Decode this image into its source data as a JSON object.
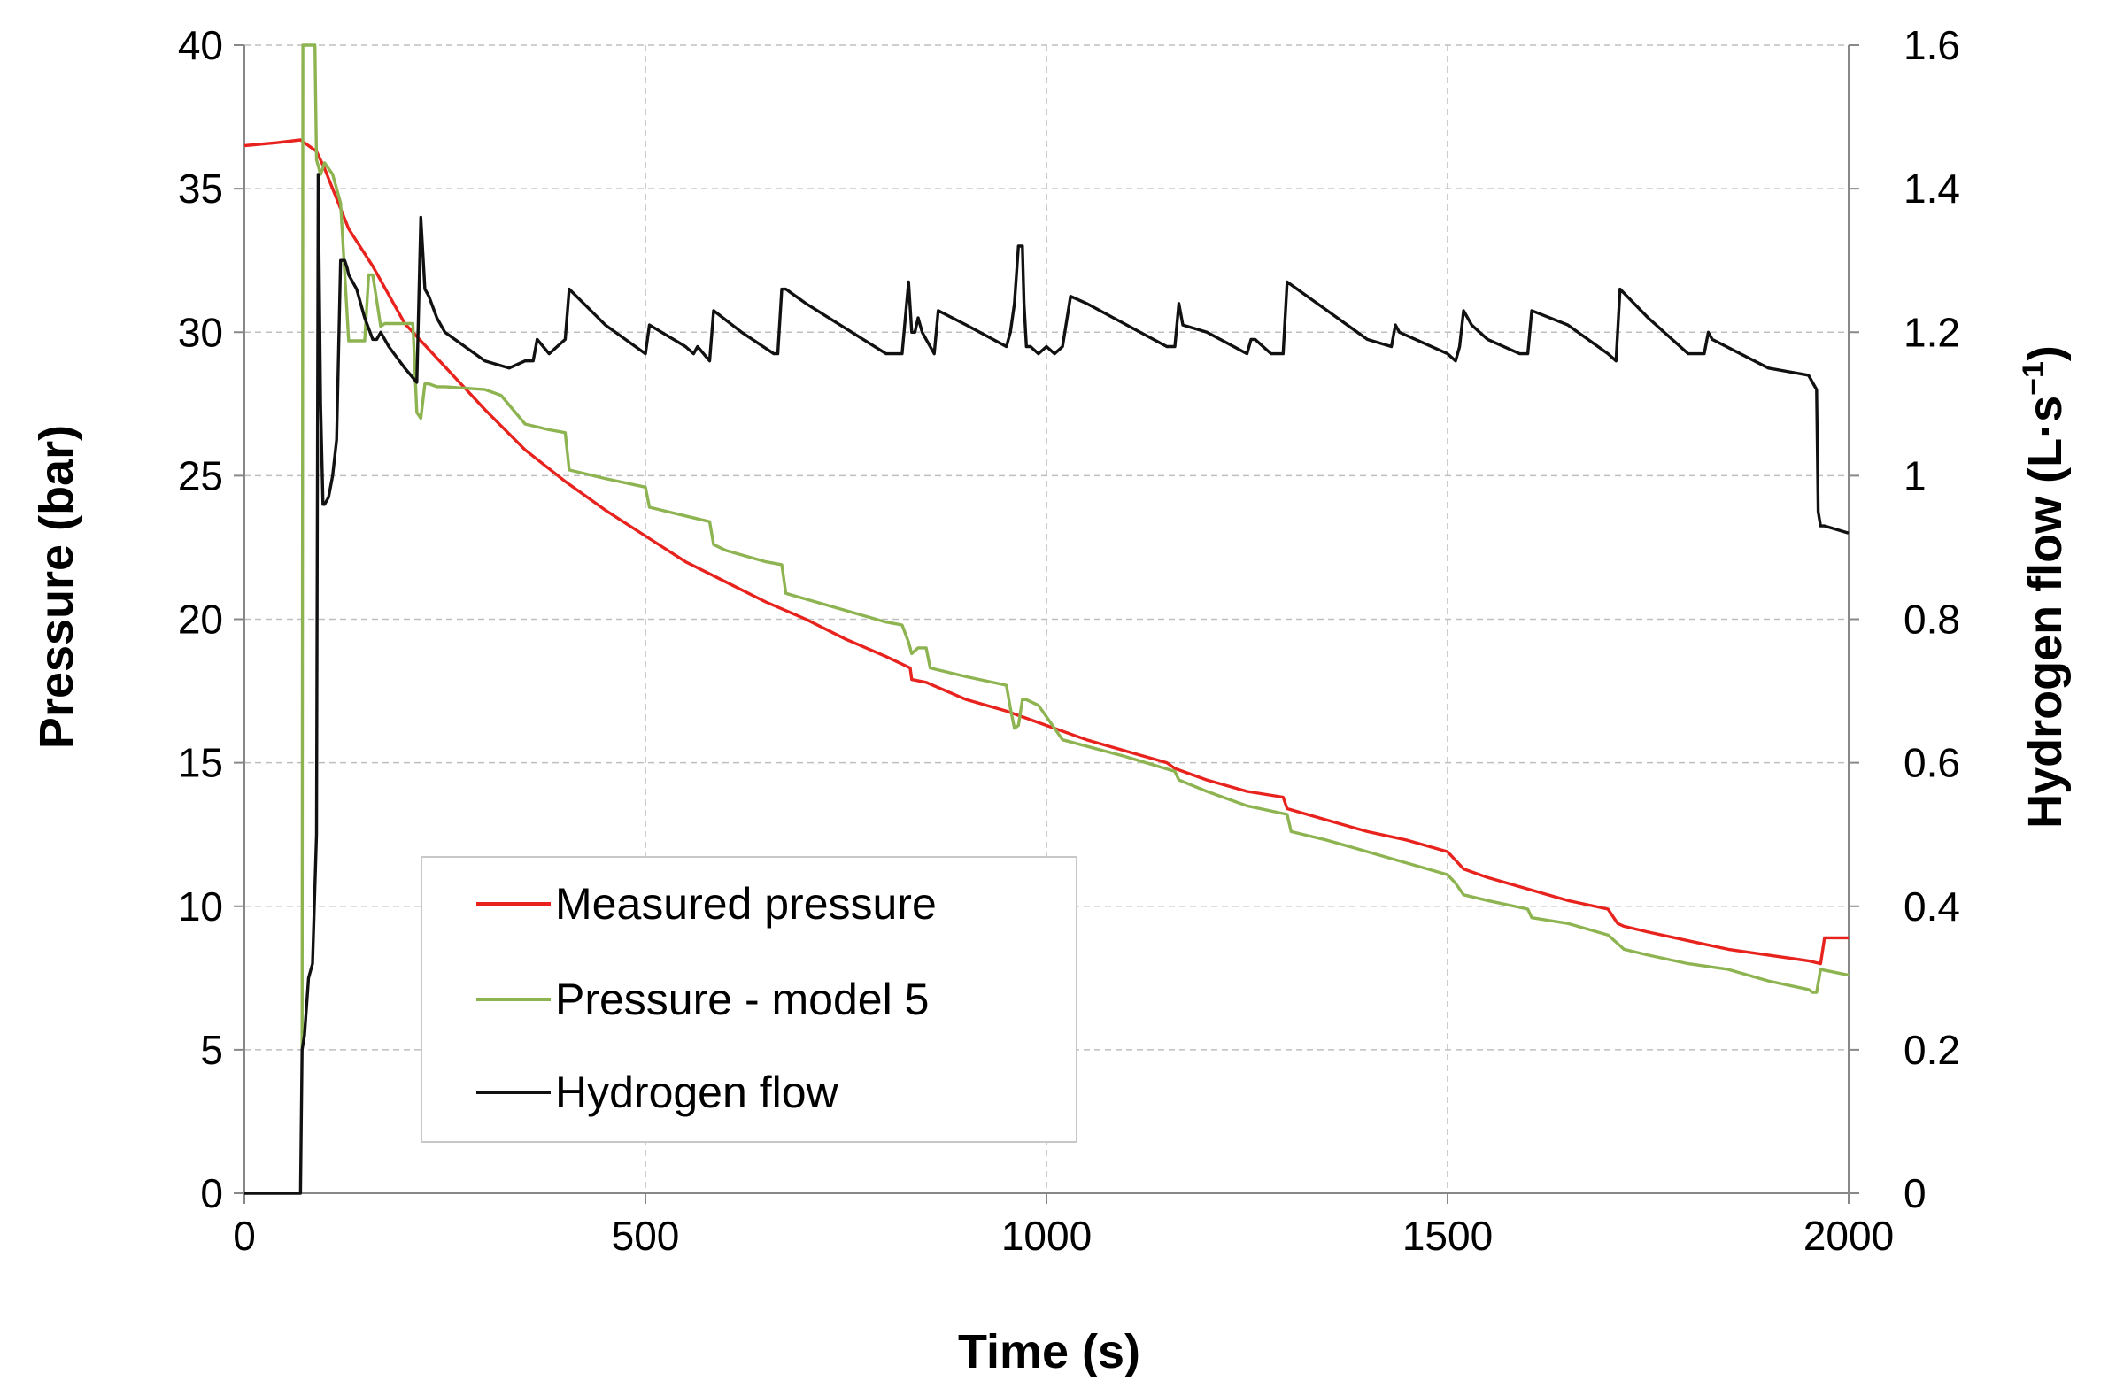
{
  "chart_data": {
    "type": "line",
    "title": "",
    "xlabel": "Time (s)",
    "ylabel": "Pressure (bar)",
    "y2label_main": "Hydrogen flow  (L·s",
    "y2label_sup": "−1",
    "y2label_close": ")",
    "xlim": [
      0,
      2000
    ],
    "ylim": [
      0,
      40
    ],
    "y2lim": [
      0,
      1.6
    ],
    "grid": true,
    "legend_position": "bottom-left",
    "x_ticks": [
      "0",
      "500",
      "1000",
      "1500",
      "2000"
    ],
    "x_tick_values": [
      0,
      500,
      1000,
      1500,
      2000
    ],
    "y_ticks": [
      "0",
      "5",
      "10",
      "15",
      "20",
      "25",
      "30",
      "35",
      "40"
    ],
    "y_tick_values": [
      0,
      5,
      10,
      15,
      20,
      25,
      30,
      35,
      40
    ],
    "y2_ticks": [
      "0",
      "0.2",
      "0.4",
      "0.6",
      "0.8",
      "1",
      "1.2",
      "1.4",
      "1.6"
    ],
    "y2_tick_values": [
      0,
      0.2,
      0.4,
      0.6,
      0.8,
      1.0,
      1.2,
      1.4,
      1.6
    ],
    "series": [
      {
        "name": "Measured pressure",
        "color": "#e8231e",
        "axis": "left",
        "x": [
          0,
          40,
          70,
          80,
          90,
          100,
          110,
          130,
          160,
          200,
          250,
          300,
          350,
          400,
          450,
          500,
          550,
          600,
          650,
          700,
          750,
          800,
          830,
          832,
          850,
          900,
          950,
          1000,
          1050,
          1100,
          1150,
          1160,
          1200,
          1250,
          1295,
          1300,
          1350,
          1400,
          1450,
          1500,
          1510,
          1520,
          1550,
          1600,
          1650,
          1700,
          1712,
          1720,
          1750,
          1800,
          1850,
          1900,
          1950,
          1965,
          1970,
          2000
        ],
        "y": [
          36.5,
          36.6,
          36.7,
          36.5,
          36.3,
          35.7,
          35.0,
          33.6,
          32.3,
          30.3,
          28.8,
          27.3,
          25.9,
          24.8,
          23.8,
          22.9,
          22.0,
          21.3,
          20.6,
          20.0,
          19.3,
          18.7,
          18.3,
          17.9,
          17.8,
          17.2,
          16.8,
          16.3,
          15.8,
          15.4,
          15.0,
          14.8,
          14.4,
          14.0,
          13.8,
          13.4,
          13.0,
          12.6,
          12.3,
          11.9,
          11.6,
          11.3,
          11.0,
          10.6,
          10.2,
          9.9,
          9.4,
          9.3,
          9.1,
          8.8,
          8.5,
          8.3,
          8.1,
          8.0,
          8.9,
          8.9
        ]
      },
      {
        "name": "Pressure - model 5",
        "color": "#8db451",
        "axis": "left",
        "x": [
          0,
          70,
          72,
          73,
          80,
          85,
          88,
          90,
          92,
          95,
          100,
          110,
          120,
          130,
          140,
          150,
          155,
          160,
          170,
          175,
          200,
          210,
          215,
          220,
          225,
          230,
          240,
          250,
          300,
          320,
          350,
          380,
          400,
          405,
          420,
          450,
          500,
          505,
          550,
          580,
          585,
          600,
          650,
          670,
          675,
          700,
          800,
          820,
          828,
          832,
          840,
          850,
          855,
          900,
          950,
          955,
          960,
          965,
          970,
          975,
          990,
          1000,
          1020,
          1100,
          1160,
          1165,
          1200,
          1250,
          1300,
          1305,
          1350,
          1400,
          1450,
          1500,
          1510,
          1520,
          1550,
          1600,
          1605,
          1650,
          1700,
          1712,
          1720,
          1750,
          1800,
          1850,
          1900,
          1950,
          1955,
          1960,
          1965,
          2000
        ],
        "y": [
          null,
          null,
          5.0,
          40.0,
          40.0,
          40.0,
          40.0,
          36.0,
          35.8,
          35.5,
          35.9,
          35.5,
          34.5,
          29.7,
          29.7,
          29.7,
          32.0,
          32.0,
          30.2,
          30.3,
          30.3,
          30.3,
          27.2,
          27.0,
          28.2,
          28.2,
          28.1,
          28.1,
          28.0,
          27.8,
          26.8,
          26.6,
          26.5,
          25.2,
          25.1,
          24.9,
          24.6,
          23.9,
          23.6,
          23.4,
          22.6,
          22.4,
          22.0,
          21.9,
          20.9,
          20.7,
          19.9,
          19.8,
          19.2,
          18.8,
          19.0,
          19.0,
          18.3,
          18.0,
          17.7,
          16.9,
          16.2,
          16.3,
          17.2,
          17.2,
          17.0,
          16.6,
          15.8,
          15.2,
          14.7,
          14.4,
          14.0,
          13.5,
          13.2,
          12.6,
          12.3,
          11.9,
          11.5,
          11.1,
          10.8,
          10.4,
          10.2,
          9.9,
          9.6,
          9.4,
          9.0,
          8.7,
          8.5,
          8.3,
          8.0,
          7.8,
          7.4,
          7.1,
          7.0,
          7.0,
          7.8,
          7.6
        ]
      },
      {
        "name": "Hydrogen flow",
        "color": "#111111",
        "axis": "right",
        "x": [
          0,
          70,
          72,
          75,
          80,
          85,
          90,
          92,
          95,
          98,
          100,
          105,
          110,
          115,
          120,
          125,
          128,
          130,
          140,
          150,
          160,
          165,
          170,
          180,
          200,
          215,
          220,
          225,
          230,
          240,
          250,
          300,
          330,
          350,
          360,
          365,
          380,
          390,
          400,
          405,
          450,
          500,
          505,
          550,
          560,
          565,
          580,
          585,
          620,
          660,
          665,
          670,
          675,
          700,
          800,
          820,
          828,
          832,
          836,
          840,
          845,
          850,
          860,
          865,
          900,
          950,
          955,
          960,
          965,
          970,
          972,
          975,
          980,
          990,
          1000,
          1010,
          1020,
          1030,
          1050,
          1100,
          1150,
          1160,
          1165,
          1170,
          1200,
          1250,
          1255,
          1260,
          1270,
          1280,
          1290,
          1295,
          1300,
          1350,
          1400,
          1430,
          1435,
          1440,
          1500,
          1510,
          1515,
          1520,
          1530,
          1540,
          1550,
          1590,
          1600,
          1605,
          1650,
          1700,
          1710,
          1715,
          1750,
          1800,
          1820,
          1825,
          1830,
          1900,
          1950,
          1955,
          1960,
          1962,
          1965,
          1970,
          2000
        ],
        "y": [
          0,
          0,
          0.2,
          0.22,
          0.3,
          0.32,
          0.5,
          1.42,
          1.1,
          0.96,
          0.96,
          0.97,
          1.0,
          1.05,
          1.3,
          1.3,
          1.29,
          1.28,
          1.26,
          1.22,
          1.19,
          1.19,
          1.2,
          1.18,
          1.15,
          1.13,
          1.36,
          1.26,
          1.25,
          1.22,
          1.2,
          1.16,
          1.15,
          1.16,
          1.16,
          1.19,
          1.17,
          1.18,
          1.19,
          1.26,
          1.21,
          1.17,
          1.21,
          1.18,
          1.17,
          1.18,
          1.16,
          1.23,
          1.2,
          1.17,
          1.17,
          1.26,
          1.26,
          1.24,
          1.17,
          1.17,
          1.27,
          1.2,
          1.2,
          1.22,
          1.2,
          1.19,
          1.17,
          1.23,
          1.21,
          1.18,
          1.2,
          1.24,
          1.32,
          1.32,
          1.24,
          1.18,
          1.18,
          1.17,
          1.18,
          1.17,
          1.18,
          1.25,
          1.24,
          1.21,
          1.18,
          1.18,
          1.24,
          1.21,
          1.2,
          1.17,
          1.19,
          1.19,
          1.18,
          1.17,
          1.17,
          1.17,
          1.27,
          1.23,
          1.19,
          1.18,
          1.21,
          1.2,
          1.17,
          1.16,
          1.18,
          1.23,
          1.21,
          1.2,
          1.19,
          1.17,
          1.17,
          1.23,
          1.21,
          1.17,
          1.16,
          1.26,
          1.22,
          1.17,
          1.17,
          1.2,
          1.19,
          1.15,
          1.14,
          1.13,
          1.12,
          0.95,
          0.93,
          0.93,
          0.92
        ]
      }
    ]
  }
}
